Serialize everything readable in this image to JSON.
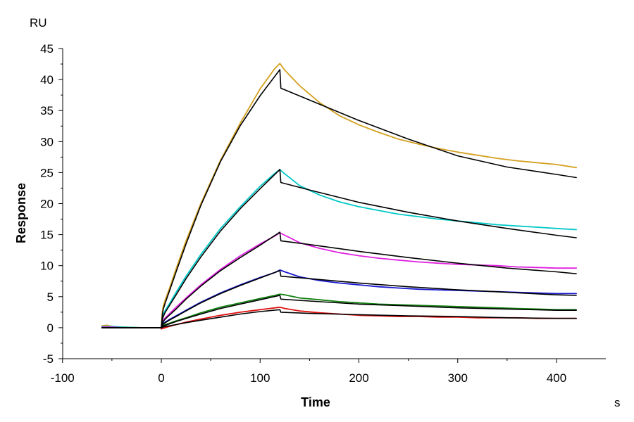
{
  "chart_data": {
    "type": "line",
    "title": "",
    "xlabel": "Time",
    "ylabel": "Response",
    "x_unit": "s",
    "y_unit": "RU",
    "xlim": [
      -100,
      450
    ],
    "ylim": [
      -5,
      45
    ],
    "x_ticks": [
      -100,
      0,
      100,
      200,
      300,
      400
    ],
    "y_ticks": [
      -5,
      0,
      5,
      10,
      15,
      20,
      25,
      30,
      35,
      40,
      45
    ],
    "x_tick_labels": [
      "-100",
      "0",
      "100",
      "200",
      "300",
      "400"
    ],
    "y_tick_labels": [
      "-5",
      "0",
      "5",
      "10",
      "15",
      "20",
      "25",
      "30",
      "35",
      "40",
      "45"
    ],
    "grid": false,
    "legend": "none",
    "series": [
      {
        "color": "#d4a020",
        "role": "measured",
        "x": [
          -60,
          -55,
          -50,
          -40,
          -20,
          0,
          1,
          2,
          4,
          8,
          15,
          25,
          40,
          60,
          80,
          100,
          115,
          120,
          125,
          140,
          160,
          180,
          200,
          220,
          240,
          260,
          280,
          300,
          320,
          340,
          360,
          380,
          400,
          420
        ],
        "y": [
          0.3,
          0.4,
          0.2,
          0.1,
          0.0,
          0.0,
          2.5,
          3.5,
          4.5,
          6.2,
          9.5,
          14.0,
          20.0,
          27.0,
          33.0,
          38.5,
          41.8,
          42.6,
          41.5,
          39.0,
          36.3,
          34.2,
          32.7,
          31.5,
          30.4,
          29.6,
          28.9,
          28.3,
          27.8,
          27.3,
          26.9,
          26.6,
          26.3,
          25.8
        ]
      },
      {
        "color": "#00c8c8",
        "role": "measured",
        "x": [
          -60,
          -50,
          -40,
          -20,
          0,
          1,
          2,
          4,
          8,
          15,
          25,
          40,
          60,
          80,
          100,
          115,
          120,
          125,
          140,
          160,
          180,
          200,
          220,
          240,
          260,
          280,
          300,
          320,
          340,
          360,
          380,
          400,
          420
        ],
        "y": [
          0.2,
          0.2,
          0.1,
          0.0,
          0.0,
          1.6,
          2.1,
          2.8,
          3.8,
          5.7,
          8.3,
          11.8,
          16.0,
          19.5,
          22.8,
          24.9,
          25.5,
          24.8,
          22.9,
          21.4,
          20.3,
          19.5,
          18.9,
          18.3,
          17.9,
          17.5,
          17.2,
          16.9,
          16.6,
          16.4,
          16.2,
          16.0,
          15.8
        ]
      },
      {
        "color": "#e020e0",
        "role": "measured",
        "x": [
          -60,
          -50,
          -40,
          -20,
          0,
          1,
          2,
          4,
          8,
          15,
          25,
          40,
          60,
          80,
          100,
          115,
          120,
          125,
          140,
          160,
          180,
          200,
          220,
          240,
          260,
          280,
          300,
          320,
          340,
          360,
          380,
          400,
          420
        ],
        "y": [
          0.1,
          0.1,
          0.0,
          0.0,
          0.0,
          0.9,
          1.2,
          1.6,
          2.2,
          3.3,
          4.8,
          6.9,
          9.4,
          11.6,
          13.5,
          14.8,
          15.3,
          14.9,
          13.7,
          12.8,
          12.1,
          11.6,
          11.2,
          10.9,
          10.6,
          10.4,
          10.2,
          10.1,
          10.0,
          9.8,
          9.7,
          9.6,
          9.6
        ]
      },
      {
        "color": "#1818d0",
        "role": "measured",
        "x": [
          -60,
          -50,
          -40,
          -20,
          0,
          1,
          2,
          4,
          8,
          15,
          25,
          40,
          60,
          80,
          100,
          115,
          120,
          125,
          140,
          160,
          180,
          200,
          220,
          240,
          260,
          280,
          300,
          320,
          340,
          360,
          380,
          400,
          420
        ],
        "y": [
          0.0,
          0.0,
          0.0,
          0.0,
          0.0,
          0.5,
          0.7,
          0.9,
          1.3,
          1.9,
          2.8,
          4.1,
          5.6,
          6.9,
          8.1,
          8.9,
          9.3,
          9.0,
          8.2,
          7.6,
          7.2,
          6.9,
          6.6,
          6.4,
          6.2,
          6.1,
          6.0,
          5.9,
          5.8,
          5.7,
          5.6,
          5.5,
          5.5
        ]
      },
      {
        "color": "#108010",
        "role": "measured",
        "x": [
          -60,
          -50,
          -40,
          -20,
          0,
          1,
          2,
          4,
          8,
          15,
          25,
          40,
          60,
          80,
          100,
          115,
          120,
          125,
          140,
          160,
          180,
          200,
          220,
          240,
          260,
          280,
          300,
          320,
          340,
          360,
          380,
          400,
          420
        ],
        "y": [
          0.0,
          0.0,
          0.0,
          0.0,
          0.0,
          0.3,
          0.4,
          0.5,
          0.7,
          1.1,
          1.6,
          2.4,
          3.3,
          4.0,
          4.7,
          5.2,
          5.4,
          5.3,
          4.8,
          4.5,
          4.2,
          4.0,
          3.8,
          3.7,
          3.6,
          3.5,
          3.4,
          3.3,
          3.2,
          3.1,
          3.0,
          2.9,
          2.9
        ]
      },
      {
        "color": "#e01010",
        "role": "measured",
        "x": [
          0,
          2,
          4,
          8,
          15,
          25,
          40,
          60,
          80,
          100,
          115,
          120,
          125,
          140,
          160,
          180,
          200,
          220,
          240,
          260,
          280,
          300,
          320,
          340,
          360,
          380,
          400,
          420
        ],
        "y": [
          -0.2,
          -0.1,
          0.0,
          0.2,
          0.5,
          0.9,
          1.4,
          2.0,
          2.5,
          2.9,
          3.2,
          3.3,
          3.1,
          2.7,
          2.4,
          2.2,
          2.0,
          1.9,
          1.8,
          1.8,
          1.7,
          1.7,
          1.6,
          1.6,
          1.6,
          1.5,
          1.5,
          1.5
        ]
      },
      {
        "color": "#000000",
        "role": "fit",
        "x": [
          -60,
          -20,
          0,
          1,
          2,
          4,
          8,
          15,
          25,
          40,
          60,
          80,
          100,
          120,
          121,
          150,
          200,
          250,
          300,
          350,
          400,
          420
        ],
        "y": [
          0.0,
          0.0,
          0.0,
          2.0,
          3.0,
          4.0,
          5.8,
          9.0,
          13.5,
          19.7,
          26.8,
          32.6,
          37.4,
          41.6,
          38.6,
          36.7,
          33.4,
          30.4,
          27.7,
          25.9,
          24.7,
          24.2
        ]
      },
      {
        "color": "#000000",
        "role": "fit",
        "x": [
          -60,
          -20,
          0,
          1,
          2,
          4,
          8,
          15,
          25,
          40,
          60,
          80,
          100,
          120,
          121,
          150,
          200,
          250,
          300,
          350,
          400,
          420
        ],
        "y": [
          0.0,
          0.0,
          0.0,
          1.3,
          1.8,
          2.5,
          3.5,
          5.3,
          7.9,
          11.4,
          15.6,
          19.2,
          22.4,
          25.5,
          23.4,
          22.2,
          20.2,
          18.6,
          17.2,
          16.0,
          14.9,
          14.5
        ]
      },
      {
        "color": "#000000",
        "role": "fit",
        "x": [
          -60,
          -20,
          0,
          1,
          2,
          4,
          8,
          15,
          25,
          40,
          60,
          80,
          100,
          120,
          121,
          150,
          200,
          250,
          300,
          350,
          400,
          420
        ],
        "y": [
          0.0,
          0.0,
          0.0,
          0.7,
          1.0,
          1.4,
          2.0,
          3.0,
          4.6,
          6.7,
          9.2,
          11.3,
          13.3,
          15.4,
          14.0,
          13.4,
          12.3,
          11.3,
          10.4,
          9.6,
          9.0,
          8.7
        ]
      },
      {
        "color": "#000000",
        "role": "fit",
        "x": [
          -60,
          -20,
          0,
          1,
          2,
          4,
          8,
          15,
          25,
          40,
          60,
          80,
          100,
          120,
          121,
          150,
          200,
          250,
          300,
          350,
          400,
          420
        ],
        "y": [
          0.0,
          0.0,
          0.0,
          0.4,
          0.6,
          0.8,
          1.2,
          1.8,
          2.7,
          4.0,
          5.5,
          6.8,
          8.0,
          9.2,
          8.3,
          7.9,
          7.2,
          6.6,
          6.1,
          5.7,
          5.3,
          5.2
        ]
      },
      {
        "color": "#000000",
        "role": "fit",
        "x": [
          -60,
          -20,
          0,
          1,
          2,
          4,
          8,
          15,
          25,
          40,
          60,
          80,
          100,
          120,
          121,
          150,
          200,
          250,
          300,
          350,
          400,
          420
        ],
        "y": [
          0.0,
          0.0,
          0.0,
          0.2,
          0.3,
          0.4,
          0.6,
          1.0,
          1.5,
          2.2,
          3.1,
          3.8,
          4.5,
          5.2,
          4.6,
          4.3,
          3.8,
          3.5,
          3.2,
          3.0,
          2.8,
          2.8
        ]
      },
      {
        "color": "#000000",
        "role": "fit",
        "x": [
          0,
          2,
          4,
          8,
          15,
          25,
          40,
          60,
          80,
          100,
          120,
          121,
          150,
          200,
          250,
          300,
          350,
          400,
          420
        ],
        "y": [
          0.0,
          0.1,
          0.2,
          0.3,
          0.5,
          0.8,
          1.2,
          1.7,
          2.2,
          2.6,
          2.9,
          2.5,
          2.3,
          2.1,
          1.9,
          1.8,
          1.6,
          1.5,
          1.5
        ]
      }
    ]
  }
}
